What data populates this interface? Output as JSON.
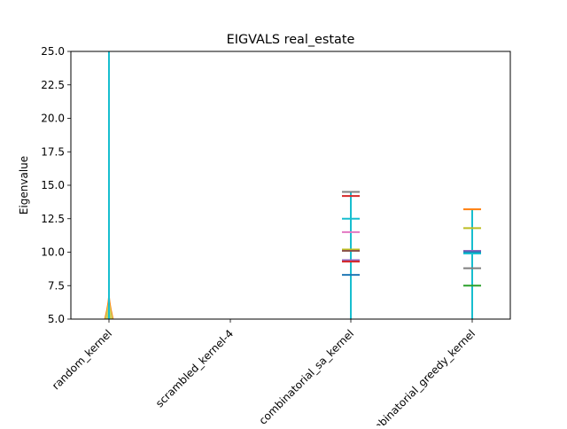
{
  "chart_data": {
    "type": "violin",
    "title": "EIGVALS real_estate",
    "xlabel": "",
    "ylabel": "Eigenvalue",
    "ylim": [
      5.0,
      25.0
    ],
    "yticks": [
      5.0,
      7.5,
      10.0,
      12.5,
      15.0,
      17.5,
      20.0,
      22.5,
      25.0
    ],
    "ytick_labels": [
      "5.0",
      "7.5",
      "10.0",
      "12.5",
      "15.0",
      "17.5",
      "20.0",
      "22.5",
      "25.0"
    ],
    "categories": [
      "random_kernel",
      "scrambled_kernel-4",
      "combinatorial_sa_kernel",
      "combinatorial_greedy_kernel"
    ],
    "grid": false,
    "series": [
      {
        "category": "random_kernel",
        "line_top": 25.0,
        "line_color": "#17becf",
        "violin_fill": "#bcbd22",
        "caps": []
      },
      {
        "category": "scrambled_kernel-4",
        "caps": []
      },
      {
        "category": "combinatorial_sa_kernel",
        "line_top": 14.5,
        "line_color": "#17becf",
        "caps": [
          {
            "value": 14.5,
            "color": "#7f7f7f"
          },
          {
            "value": 14.2,
            "color": "#d62728"
          },
          {
            "value": 12.5,
            "color": "#17becf"
          },
          {
            "value": 11.5,
            "color": "#e377c2"
          },
          {
            "value": 10.2,
            "color": "#bcbd22"
          },
          {
            "value": 10.1,
            "color": "#8c564b"
          },
          {
            "value": 9.4,
            "color": "#9467bd"
          },
          {
            "value": 9.3,
            "color": "#d62728"
          },
          {
            "value": 8.3,
            "color": "#1f77b4"
          }
        ]
      },
      {
        "category": "combinatorial_greedy_kernel",
        "line_top": 13.2,
        "line_color": "#17becf",
        "caps": [
          {
            "value": 13.2,
            "color": "#ff7f0e"
          },
          {
            "value": 11.8,
            "color": "#bcbd22"
          },
          {
            "value": 10.1,
            "color": "#9467bd"
          },
          {
            "value": 10.0,
            "color": "#1f77b4"
          },
          {
            "value": 9.9,
            "color": "#17becf"
          },
          {
            "value": 8.8,
            "color": "#7f7f7f"
          },
          {
            "value": 7.5,
            "color": "#2ca02c"
          }
        ]
      }
    ]
  }
}
